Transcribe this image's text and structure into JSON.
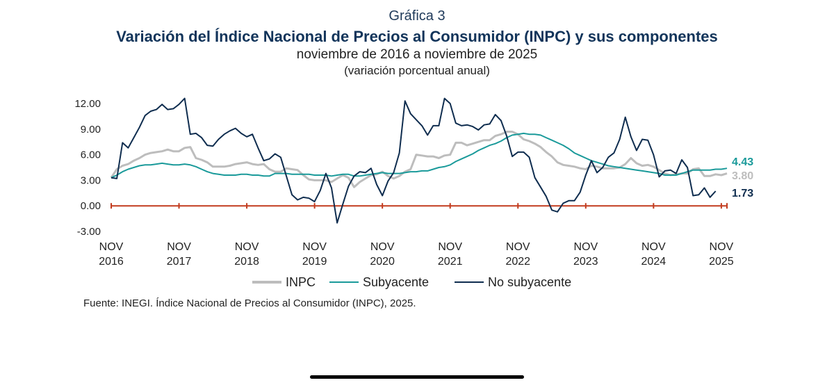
{
  "header": {
    "label": "Gráfica 3",
    "title": "Variación del Índice Nacional de Precios al Consumidor (INPC) y sus componentes",
    "subtitle": "noviembre de 2016 a noviembre de 2025",
    "units": "(variación porcentual anual)"
  },
  "source": "Fuente: INEGI. Índice Nacional de Precios al Consumidor (INPC), 2025.",
  "chart_data": {
    "type": "line",
    "ylim": [
      -3,
      12
    ],
    "yticks": [
      "12.00",
      "9.00",
      "6.00",
      "3.00",
      "0.00",
      "-3.00"
    ],
    "ytick_values": [
      12,
      9,
      6,
      3,
      0,
      -3
    ],
    "xticks": [
      {
        "top": "NOV",
        "bottom": "2016",
        "index": 0
      },
      {
        "top": "NOV",
        "bottom": "2017",
        "index": 12
      },
      {
        "top": "NOV",
        "bottom": "2018",
        "index": 24
      },
      {
        "top": "NOV",
        "bottom": "2019",
        "index": 36
      },
      {
        "top": "NOV",
        "bottom": "2020",
        "index": 48
      },
      {
        "top": "NOV",
        "bottom": "2021",
        "index": 60
      },
      {
        "top": "NOV",
        "bottom": "2022",
        "index": 72
      },
      {
        "top": "NOV",
        "bottom": "2023",
        "index": 84
      },
      {
        "top": "NOV",
        "bottom": "2024",
        "index": 96
      },
      {
        "top": "NOV",
        "bottom": "2025",
        "index": 108
      }
    ],
    "legend": "bottom",
    "zero_line_color": "#c23b1e",
    "series": [
      {
        "name": "INPC",
        "color": "#bdbdbd",
        "end_label": "3.80",
        "values": [
          3.3,
          4.3,
          4.7,
          4.9,
          5.3,
          5.6,
          6.0,
          6.2,
          6.3,
          6.4,
          6.6,
          6.4,
          6.4,
          6.8,
          6.9,
          5.6,
          5.4,
          5.1,
          4.6,
          4.6,
          4.6,
          4.7,
          4.9,
          5.0,
          5.1,
          4.9,
          4.8,
          4.9,
          4.3,
          4.0,
          4.0,
          4.4,
          4.3,
          4.2,
          3.6,
          3.1,
          3.0,
          3.0,
          3.0,
          2.8,
          3.2,
          3.6,
          3.3,
          2.2,
          2.8,
          3.2,
          3.6,
          3.7,
          4.0,
          3.5,
          3.2,
          3.5,
          4.0,
          4.3,
          6.0,
          5.9,
          5.8,
          5.8,
          5.6,
          5.9,
          6.0,
          7.4,
          7.4,
          7.1,
          7.3,
          7.5,
          7.7,
          7.7,
          8.2,
          8.4,
          8.7,
          8.7,
          8.4,
          7.8,
          7.6,
          7.3,
          6.9,
          6.3,
          5.8,
          5.1,
          4.8,
          4.7,
          4.6,
          4.4,
          4.3,
          4.7,
          4.6,
          4.4,
          4.4,
          4.4,
          4.5,
          4.9,
          5.6,
          5.0,
          4.7,
          4.8,
          4.6,
          4.2,
          3.8,
          3.6,
          3.7,
          3.8,
          3.8,
          4.3,
          4.4,
          3.5,
          3.5,
          3.7,
          3.6,
          3.8
        ]
      },
      {
        "name": "Subyacente",
        "color": "#1a9a9a",
        "end_label": "4.43",
        "values": [
          3.3,
          3.6,
          4.0,
          4.3,
          4.5,
          4.7,
          4.8,
          4.8,
          4.9,
          5.0,
          4.9,
          4.8,
          4.8,
          4.9,
          4.8,
          4.6,
          4.3,
          4.0,
          3.8,
          3.7,
          3.6,
          3.6,
          3.6,
          3.7,
          3.7,
          3.6,
          3.6,
          3.5,
          3.5,
          3.8,
          3.8,
          3.8,
          3.7,
          3.7,
          3.7,
          3.7,
          3.6,
          3.6,
          3.6,
          3.5,
          3.6,
          3.7,
          3.7,
          3.5,
          3.5,
          3.6,
          3.7,
          3.8,
          3.9,
          3.8,
          3.8,
          3.8,
          3.9,
          4.0,
          4.0,
          4.1,
          4.1,
          4.3,
          4.5,
          4.6,
          4.8,
          5.2,
          5.5,
          5.8,
          6.1,
          6.5,
          6.8,
          7.1,
          7.3,
          7.6,
          8.0,
          8.3,
          8.4,
          8.5,
          8.4,
          8.4,
          8.3,
          8.0,
          7.7,
          7.4,
          7.1,
          6.7,
          6.2,
          5.9,
          5.6,
          5.3,
          5.1,
          4.9,
          4.7,
          4.6,
          4.5,
          4.4,
          4.3,
          4.2,
          4.1,
          4.0,
          3.9,
          3.8,
          3.6,
          3.6,
          3.6,
          3.8,
          4.0,
          4.2,
          4.2,
          4.2,
          4.2,
          4.3,
          4.3,
          4.4
        ]
      },
      {
        "name": "No subyacente",
        "color": "#0f2d4f",
        "end_label": "1.73",
        "values": [
          3.3,
          3.2,
          7.4,
          6.8,
          8.0,
          9.2,
          10.6,
          11.1,
          11.3,
          11.9,
          11.3,
          11.4,
          11.9,
          12.6,
          8.4,
          8.5,
          8.0,
          7.1,
          7.0,
          7.8,
          8.4,
          8.8,
          9.1,
          8.5,
          8.1,
          8.4,
          6.8,
          5.3,
          5.5,
          6.1,
          5.7,
          3.5,
          1.3,
          0.7,
          1.0,
          0.9,
          0.5,
          1.8,
          3.8,
          2.1,
          -2.0,
          0.2,
          2.3,
          3.5,
          4.0,
          3.9,
          4.4,
          2.5,
          1.2,
          2.9,
          3.9,
          6.2,
          12.3,
          10.8,
          10.1,
          9.4,
          8.3,
          9.4,
          9.4,
          12.6,
          12.0,
          9.7,
          9.4,
          9.5,
          9.3,
          8.9,
          9.5,
          9.6,
          10.7,
          10.0,
          8.2,
          5.8,
          6.3,
          6.3,
          5.7,
          3.3,
          2.2,
          1.1,
          -0.5,
          -0.7,
          0.3,
          0.6,
          0.6,
          1.6,
          3.6,
          5.3,
          3.9,
          4.5,
          5.7,
          6.2,
          7.8,
          10.4,
          8.1,
          6.5,
          7.8,
          7.7,
          6.0,
          3.4,
          4.1,
          4.2,
          3.8,
          5.4,
          4.5,
          1.2,
          1.3,
          2.1,
          1.0,
          1.73
        ]
      }
    ]
  }
}
